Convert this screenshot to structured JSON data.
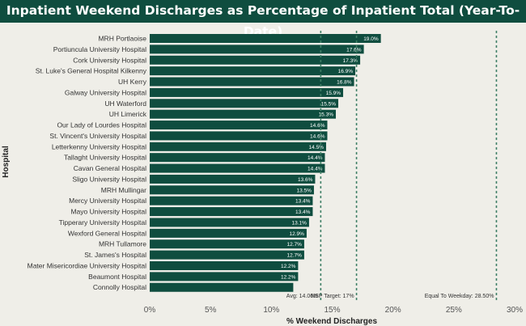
{
  "chart_data": {
    "type": "bar",
    "orientation": "horizontal",
    "title": "Inpatient Weekend Discharges as Percentage of Inpatient Total (Year-To-Date)",
    "xlabel": "% Weekend Discharges",
    "ylabel": "Hospital",
    "xlim": [
      0,
      30
    ],
    "xticks": [
      0,
      5,
      10,
      15,
      20,
      25,
      30
    ],
    "xtick_labels": [
      "0%",
      "5%",
      "10%",
      "15%",
      "20%",
      "25%",
      "30%"
    ],
    "bar_color": "#0f4d3f",
    "categories": [
      "MRH Portlaoise",
      "Portiuncula University Hospital",
      "Cork University Hospital",
      "St. Luke's General Hospital Kilkenny",
      "UH Kerry",
      "Galway University Hospital",
      "UH Waterford",
      "UH Limerick",
      "Our Lady of Lourdes Hospital",
      "St. Vincent's University Hospital",
      "Letterkenny University Hospital",
      "Tallaght University Hospital",
      "Cavan General Hospital",
      "Sligo University Hospital",
      "MRH Mullingar",
      "Mercy University Hospital",
      "Mayo University Hospital",
      "Tipperary University Hospital",
      "Wexford General Hospital",
      "MRH Tullamore",
      "St. James's Hospital",
      "Mater Misericordiae University Hospital",
      "Beaumont Hospital",
      "Connolly Hospital"
    ],
    "values": [
      19.0,
      17.6,
      17.3,
      16.9,
      16.8,
      15.9,
      15.5,
      15.3,
      14.6,
      14.6,
      14.5,
      14.4,
      14.4,
      13.6,
      13.5,
      13.4,
      13.4,
      13.1,
      12.9,
      12.7,
      12.7,
      12.2,
      12.2,
      11.8
    ],
    "data_labels": [
      "19.0%",
      "17.6%",
      "17.3%",
      "16.9%",
      "16.8%",
      "15.9%",
      "15.5%",
      "15.3%",
      "14.6%",
      "14.6%",
      "14.5%",
      "14.4%",
      "14.4%",
      "13.6%",
      "13.5%",
      "13.4%",
      "13.4%",
      "13.1%",
      "12.9%",
      "12.7%",
      "12.7%",
      "12.2%",
      "12.2%",
      ""
    ],
    "reference_lines": [
      {
        "name": "average",
        "value": 14.06,
        "label": "Avg: 14.06%"
      },
      {
        "name": "nsp-target",
        "value": 17,
        "label": "NSP Target: 17%"
      },
      {
        "name": "equal-to-weekday",
        "value": 28.5,
        "label": "Equal To Weekday: 28.50%"
      }
    ],
    "reference_line_color": "#3f7f66"
  }
}
